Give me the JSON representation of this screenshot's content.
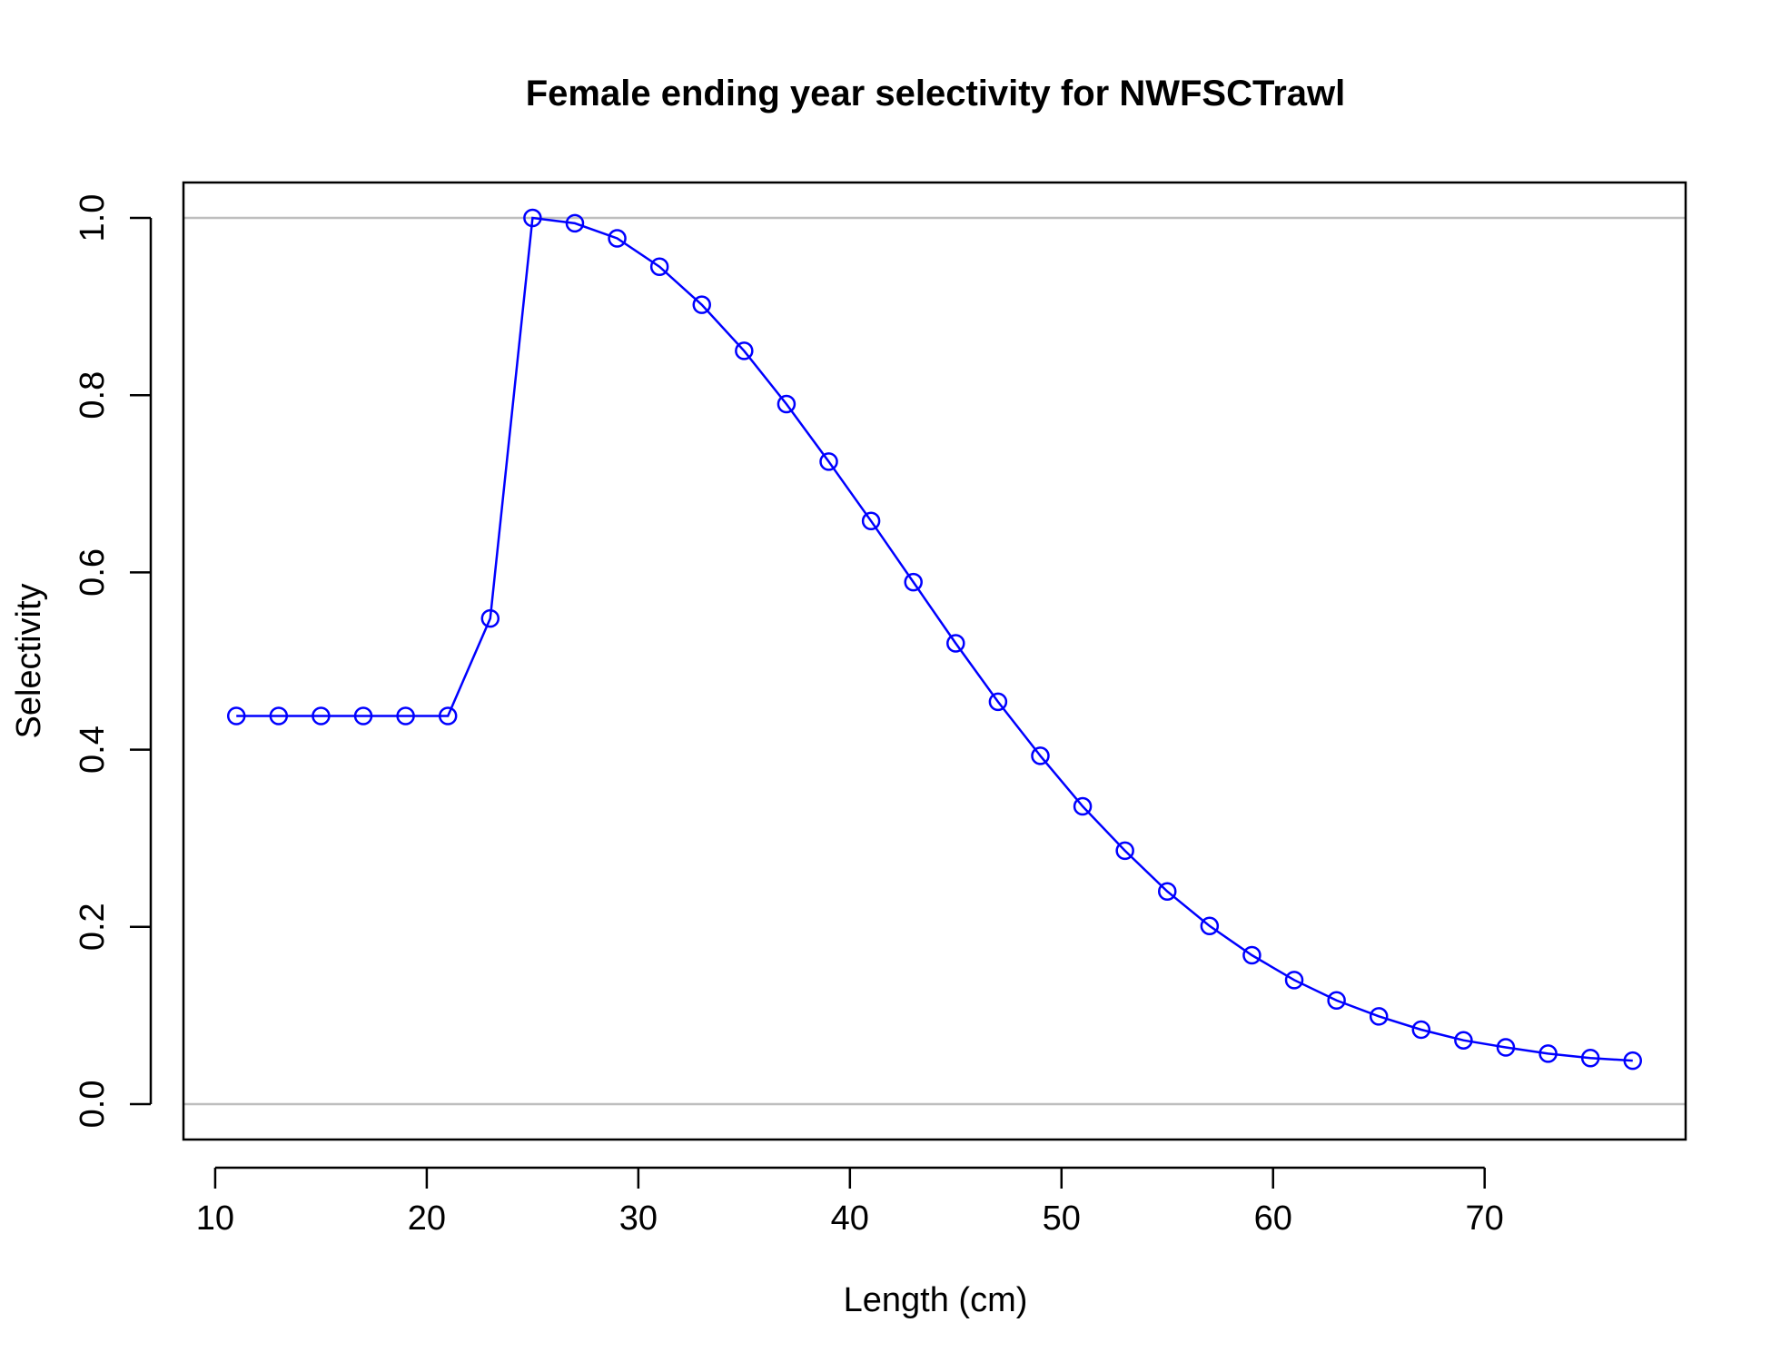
{
  "chart_data": {
    "type": "line",
    "title": "Female ending year selectivity for NWFSCTrawl",
    "xlabel": "Length (cm)",
    "ylabel": "Selectivity",
    "xlim": [
      8.5,
      79.5
    ],
    "ylim": [
      -0.04,
      1.04
    ],
    "xticks": [
      10,
      20,
      30,
      40,
      50,
      60,
      70
    ],
    "xtick_labels": [
      "10",
      "20",
      "30",
      "40",
      "50",
      "60",
      "70"
    ],
    "yticks": [
      0.0,
      0.2,
      0.4,
      0.6,
      0.8,
      1.0
    ],
    "ytick_labels": [
      "0.0",
      "0.2",
      "0.4",
      "0.6",
      "0.8",
      "1.0"
    ],
    "reference_lines": [
      0,
      1
    ],
    "grid": false,
    "markers": "open-circle",
    "colors": {
      "series": "#0000ff",
      "reference": "#bebebe",
      "axis": "#000000"
    },
    "series": [
      {
        "x": [
          11,
          13,
          15,
          17,
          19,
          21,
          23,
          25,
          27,
          29,
          31,
          33,
          35,
          37,
          39,
          41,
          43,
          45,
          47,
          49,
          51,
          53,
          55,
          57,
          59,
          61,
          63,
          65,
          67,
          69,
          71,
          73,
          75,
          77
        ],
        "values": [
          0.438,
          0.438,
          0.438,
          0.438,
          0.438,
          0.438,
          0.548,
          1.0,
          0.994,
          0.977,
          0.945,
          0.902,
          0.85,
          0.79,
          0.725,
          0.658,
          0.589,
          0.52,
          0.454,
          0.393,
          0.336,
          0.286,
          0.24,
          0.201,
          0.168,
          0.14,
          0.117,
          0.099,
          0.084,
          0.072,
          0.064,
          0.057,
          0.052,
          0.049
        ]
      }
    ]
  }
}
